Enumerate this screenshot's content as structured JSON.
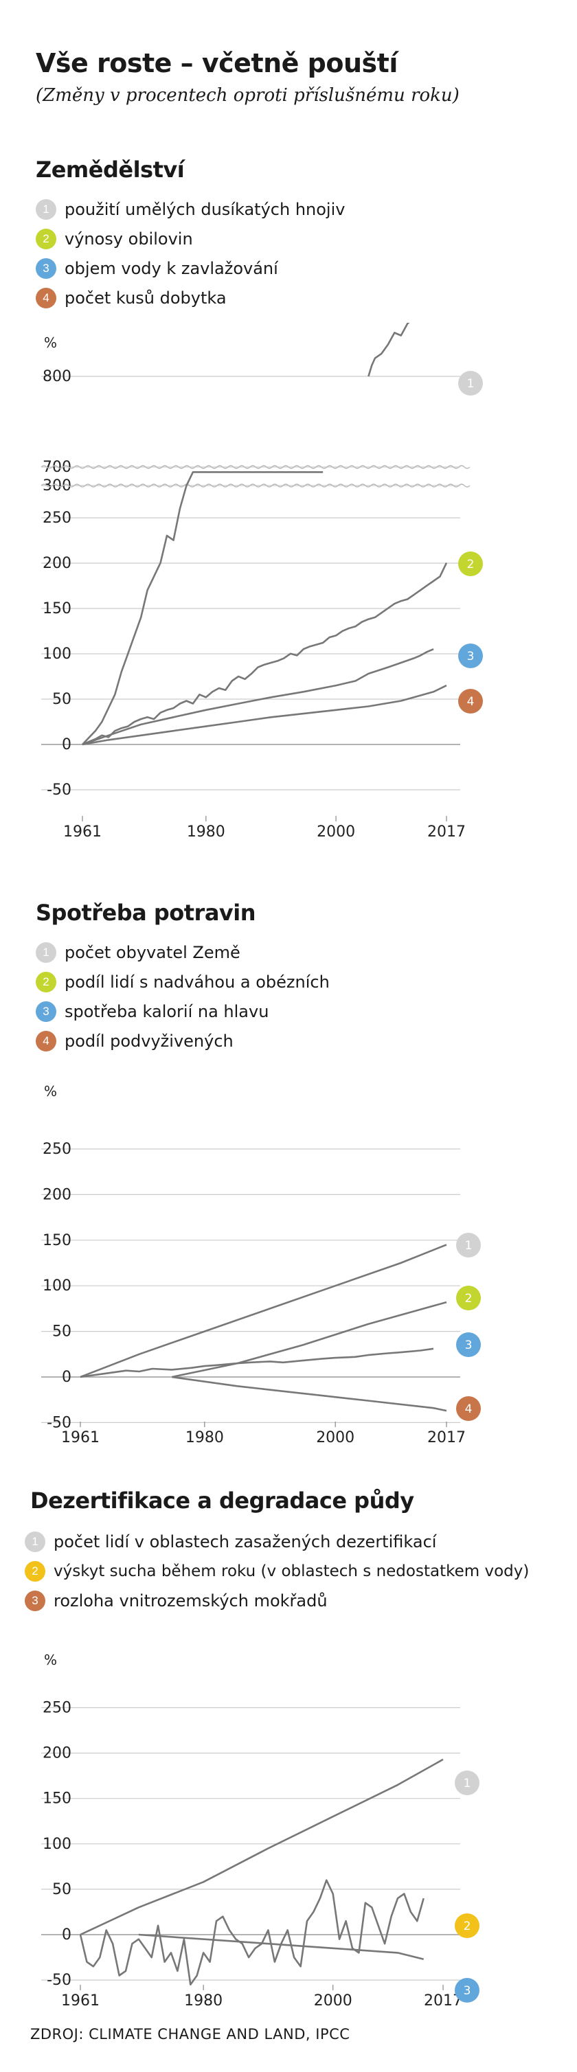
{
  "title": "Vše roste – včetně pouští",
  "subtitle": "(Změny v procentech oproti příslušnému roku)",
  "source": "ZDROJ: CLIMATE CHANGE AND LAND, IPCC",
  "colors": {
    "line": "#777777",
    "grid": "#cccccc",
    "badge_1": "#d2d2d2",
    "badge_2": "#c3d52f",
    "badge_3": "#62a7db",
    "badge_4": "#c8754a"
  },
  "chart_data": [
    {
      "type": "line",
      "title": "Zemědělství",
      "ylabel": "%",
      "ylim": [
        -50,
        800
      ],
      "axis_break": [
        300,
        700
      ],
      "y_ticks": [
        "800",
        "700",
        "300",
        "250",
        "200",
        "150",
        "100",
        "50",
        "0",
        "-50"
      ],
      "x_ticks": [
        "1961",
        "1980",
        "2000",
        "2017"
      ],
      "series": [
        {
          "name": "použití umělých dusíkatých hnojiv",
          "badge": "1",
          "color_key": "badge_1",
          "x": [
            1961,
            1963,
            1964,
            1965,
            1966,
            1967,
            1968,
            1969,
            1970,
            1971,
            1972,
            1973,
            1974,
            1975,
            1976,
            1977,
            1978,
            1998,
            1998.5,
            1999,
            1999.7,
            2000,
            2000.5,
            2001,
            2001.5,
            2002,
            2002.5,
            2003,
            2005,
            2005.5,
            2006,
            2007,
            2008,
            2009,
            2010,
            2011,
            2012
          ],
          "values": [
            0,
            15,
            25,
            40,
            55,
            80,
            100,
            120,
            140,
            170,
            185,
            200,
            230,
            225,
            260,
            285,
            300,
            300,
            320,
            340,
            345,
            350,
            380,
            380,
            400,
            420,
            440,
            460,
            700,
            712,
            720,
            725,
            735,
            748,
            745,
            758,
            765
          ]
        },
        {
          "name": "výnosy obilovin",
          "badge": "2",
          "color_key": "badge_2",
          "x": [
            1961,
            1962,
            1963,
            1964,
            1965,
            1966,
            1967,
            1968,
            1969,
            1970,
            1971,
            1972,
            1973,
            1974,
            1975,
            1976,
            1977,
            1978,
            1979,
            1980,
            1981,
            1982,
            1983,
            1984,
            1985,
            1986,
            1987,
            1988,
            1989,
            1990,
            1991,
            1992,
            1993,
            1994,
            1995,
            1996,
            1997,
            1998,
            1999,
            2000,
            2001,
            2002,
            2003,
            2004,
            2005,
            2006,
            2007,
            2008,
            2009,
            2010,
            2011,
            2012,
            2013,
            2014,
            2015,
            2016,
            2017
          ],
          "values": [
            0,
            3,
            6,
            10,
            8,
            15,
            18,
            20,
            25,
            28,
            30,
            28,
            35,
            38,
            40,
            45,
            48,
            45,
            55,
            52,
            58,
            62,
            60,
            70,
            75,
            72,
            78,
            85,
            88,
            90,
            92,
            95,
            100,
            98,
            105,
            108,
            110,
            112,
            118,
            120,
            125,
            128,
            130,
            135,
            138,
            140,
            145,
            150,
            155,
            158,
            160,
            165,
            170,
            175,
            180,
            185,
            200
          ]
        },
        {
          "name": "objem vody k zavlažování",
          "badge": "3",
          "color_key": "badge_3",
          "x": [
            1961,
            1965,
            1970,
            1975,
            1980,
            1985,
            1990,
            1995,
            2000,
            2003,
            2005,
            2008,
            2010,
            2012,
            2013,
            2014,
            2015
          ],
          "values": [
            0,
            10,
            22,
            30,
            38,
            45,
            52,
            58,
            65,
            70,
            78,
            85,
            90,
            95,
            98,
            102,
            105
          ]
        },
        {
          "name": "počet kusů dobytka",
          "badge": "4",
          "color_key": "badge_4",
          "x": [
            1961,
            1965,
            1970,
            1975,
            1980,
            1985,
            1990,
            1995,
            2000,
            2005,
            2010,
            2012,
            2015,
            2017
          ],
          "values": [
            0,
            5,
            10,
            15,
            20,
            25,
            30,
            34,
            38,
            42,
            48,
            52,
            58,
            65
          ]
        }
      ]
    },
    {
      "type": "line",
      "title": "Spotřeba potravin",
      "ylabel": "%",
      "ylim": [
        -50,
        250
      ],
      "y_ticks": [
        "250",
        "200",
        "150",
        "100",
        "50",
        "0",
        "-50"
      ],
      "x_ticks": [
        "1961",
        "1980",
        "2000",
        "2017"
      ],
      "series": [
        {
          "name": "počet obyvatel Země",
          "badge": "1",
          "color_key": "badge_1",
          "x": [
            1961,
            1970,
            1980,
            1990,
            2000,
            2010,
            2017
          ],
          "values": [
            0,
            25,
            50,
            75,
            100,
            125,
            145
          ]
        },
        {
          "name": "podíl lidí s nadváhou a obézních",
          "badge": "2",
          "color_key": "badge_2",
          "x": [
            1975,
            1985,
            1995,
            2005,
            2017
          ],
          "values": [
            0,
            15,
            35,
            58,
            82
          ]
        },
        {
          "name": "spotřeba kalorií na hlavu",
          "badge": "3",
          "color_key": "badge_3",
          "x": [
            1961,
            1965,
            1968,
            1970,
            1972,
            1975,
            1978,
            1980,
            1982,
            1985,
            1987,
            1990,
            1992,
            1995,
            1998,
            2000,
            2003,
            2005,
            2008,
            2010,
            2013,
            2015
          ],
          "values": [
            0,
            4,
            7,
            6,
            9,
            8,
            10,
            12,
            13,
            15,
            16,
            17,
            16,
            18,
            20,
            21,
            22,
            24,
            26,
            27,
            29,
            31
          ]
        },
        {
          "name": "podíl podvyživených",
          "badge": "4",
          "color_key": "badge_4",
          "x": [
            1975,
            1985,
            1995,
            2005,
            2015,
            2017
          ],
          "values": [
            0,
            -10,
            -18,
            -26,
            -34,
            -37
          ]
        }
      ]
    },
    {
      "type": "line",
      "title": "Dezertifikace a degradace půdy",
      "ylabel": "%",
      "ylim": [
        -50,
        250
      ],
      "y_ticks": [
        "250",
        "200",
        "150",
        "100",
        "50",
        "0",
        "-50"
      ],
      "x_ticks": [
        "1961",
        "1980",
        "2000",
        "2017"
      ],
      "series": [
        {
          "name": "počet lidí v oblastech zasažených dezertifikací",
          "badge": "1",
          "color_key": "badge_1",
          "x": [
            1961,
            1970,
            1980,
            1990,
            2000,
            2010,
            2017
          ],
          "values": [
            0,
            30,
            58,
            95,
            130,
            165,
            193
          ]
        },
        {
          "name": "výskyt sucha během roku (v oblastech s nedostatkem vody)",
          "badge": "2",
          "color_key": "badge_2",
          "x": [
            1961,
            1962,
            1963,
            1964,
            1965,
            1966,
            1967,
            1968,
            1969,
            1970,
            1971,
            1972,
            1973,
            1974,
            1975,
            1976,
            1977,
            1978,
            1979,
            1980,
            1981,
            1982,
            1983,
            1984,
            1985,
            1986,
            1987,
            1988,
            1989,
            1990,
            1991,
            1992,
            1993,
            1994,
            1995,
            1996,
            1997,
            1998,
            1999,
            2000,
            2001,
            2002,
            2003,
            2004,
            2005,
            2006,
            2007,
            2008,
            2009,
            2010,
            2011,
            2012,
            2013,
            2014
          ],
          "values": [
            0,
            -30,
            -35,
            -25,
            5,
            -10,
            -45,
            -40,
            -10,
            -5,
            -15,
            -25,
            10,
            -30,
            -20,
            -40,
            -5,
            -55,
            -45,
            -20,
            -30,
            15,
            20,
            5,
            -5,
            -10,
            -25,
            -15,
            -10,
            5,
            -30,
            -10,
            5,
            -25,
            -35,
            15,
            25,
            40,
            60,
            45,
            -5,
            15,
            -15,
            -20,
            35,
            30,
            10,
            -10,
            20,
            40,
            45,
            25,
            15,
            40
          ]
        },
        {
          "name": "rozloha vnitrozemských mokřadů",
          "badge": "3",
          "color_key": "badge_3",
          "x": [
            1970,
            1980,
            1990,
            2000,
            2010,
            2014
          ],
          "values": [
            0,
            -5,
            -10,
            -15,
            -20,
            -27
          ]
        }
      ]
    }
  ]
}
